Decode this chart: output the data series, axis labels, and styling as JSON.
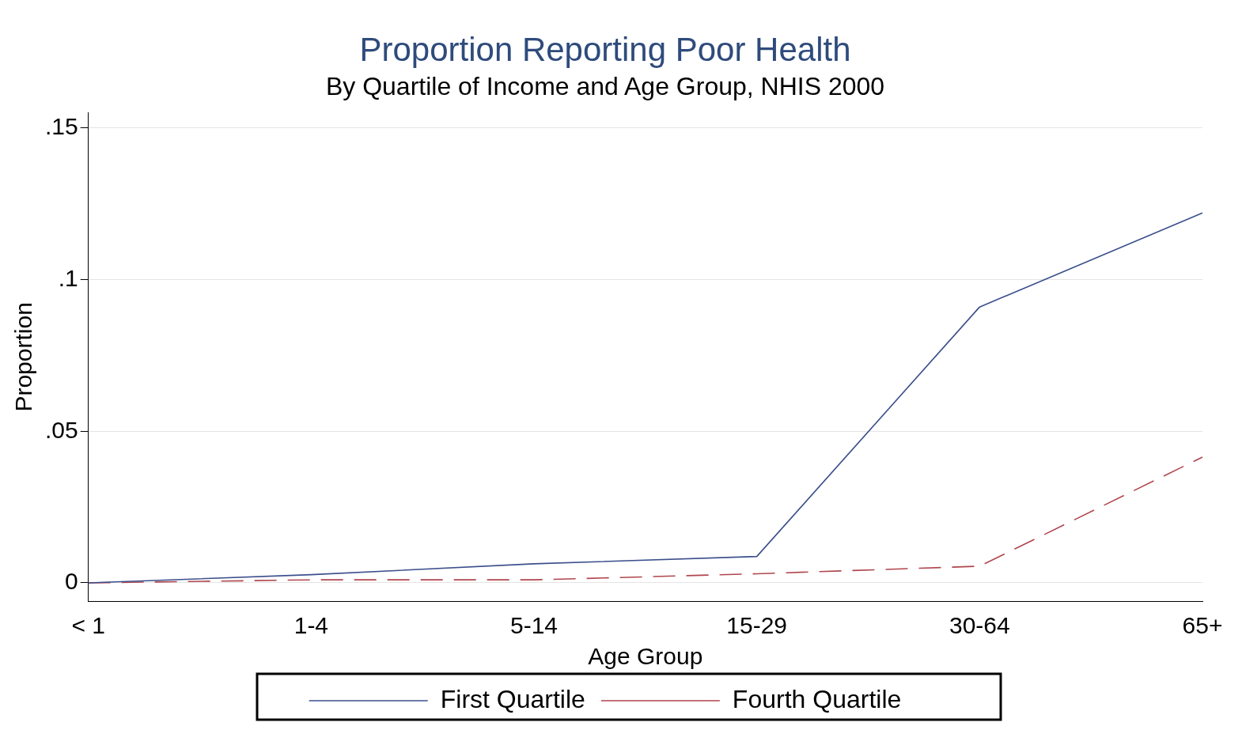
{
  "chart_data": {
    "type": "line",
    "title": "Proportion Reporting Poor Health",
    "subtitle": "By Quartile of Income and Age Group, NHIS 2000",
    "xlabel": "Age Group",
    "ylabel": "Proportion",
    "categories": [
      "< 1",
      "1-4",
      "5-14",
      "15-29",
      "30-64",
      "65+"
    ],
    "series": [
      {
        "name": "First Quartile",
        "color": "#3b4f8c",
        "line_style": "solid",
        "values": [
          0,
          0.0027,
          0.0063,
          0.0087,
          0.091,
          0.122
        ]
      },
      {
        "name": "Fourth Quartile",
        "color": "#b0464e",
        "line_style": "dashed",
        "values": [
          0,
          0.001,
          0.001,
          0.003,
          0.0055,
          0.0415
        ]
      }
    ],
    "ylim": [
      -0.006,
      0.155
    ],
    "yticks": [
      {
        "value": 0,
        "label": "0"
      },
      {
        "value": 0.05,
        "label": ".05"
      },
      {
        "value": 0.1,
        "label": ".1"
      },
      {
        "value": 0.15,
        "label": ".15"
      }
    ],
    "grid": "y",
    "legend": "bottom",
    "marker": "none"
  }
}
